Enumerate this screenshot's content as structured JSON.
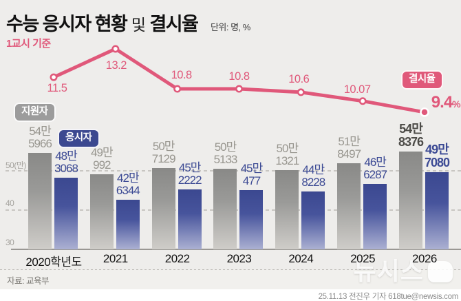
{
  "header": {
    "title_main": "수능 응시자 현황",
    "title_conj": "및",
    "title_tail": "결시율",
    "unit": "단위: 명, %",
    "subtitle": "1교시 기준"
  },
  "legend": {
    "applicants_label": "지원자",
    "examinees_label": "응시자",
    "rate_label": "결시율"
  },
  "chart_data": {
    "type": "bar+line",
    "title": "수능 응시자 현황 및 결시율",
    "unit": "명, %",
    "basis": "1교시 기준",
    "categories": [
      "2020학년도",
      "2021",
      "2022",
      "2023",
      "2024",
      "2025",
      "2026"
    ],
    "series": [
      {
        "name": "지원자",
        "values": [
          545966,
          490992,
          507129,
          505133,
          501321,
          518497,
          548376
        ],
        "labels": [
          [
            "54만",
            "5966"
          ],
          [
            "49만",
            "992"
          ],
          [
            "50만",
            "7129"
          ],
          [
            "50만",
            "5133"
          ],
          [
            "50만",
            "1321"
          ],
          [
            "51만",
            "8497"
          ],
          [
            "54만",
            "8376"
          ]
        ]
      },
      {
        "name": "응시자",
        "values": [
          483068,
          426344,
          452222,
          450477,
          448228,
          466287,
          497080
        ],
        "labels": [
          [
            "48만",
            "3068"
          ],
          [
            "42만",
            "6344"
          ],
          [
            "45만",
            "2222"
          ],
          [
            "45만",
            "477"
          ],
          [
            "44만",
            "8228"
          ],
          [
            "46만",
            "6287"
          ],
          [
            "49만",
            "7080"
          ]
        ]
      }
    ],
    "line": {
      "name": "결시율",
      "values": [
        11.5,
        13.2,
        10.8,
        10.8,
        10.6,
        10.07,
        9.4
      ],
      "labels": [
        "11.5",
        "13.2",
        "10.8",
        "10.8",
        "10.6",
        "10.07",
        "9.4"
      ],
      "final_unit": "%"
    },
    "y_axis": {
      "ticks": [
        {
          "label": "50(만)",
          "value": 500000
        },
        {
          "label": "40",
          "value": 400000
        },
        {
          "label": "30",
          "value": 300000
        }
      ],
      "baseline_value": 300000,
      "grid": "dashed"
    },
    "colors": {
      "applicants_bar": "#8a8a88",
      "examinees_bar": "#3b4890",
      "rate_line": "#e0587a"
    },
    "legend_position": "inline-badges",
    "emphasized_category": "2026"
  },
  "footer": {
    "source": "자료: 교육부",
    "credit": "25.11.13 전진우 기자 618tue@newsis.com",
    "watermark": "뉴시스"
  }
}
